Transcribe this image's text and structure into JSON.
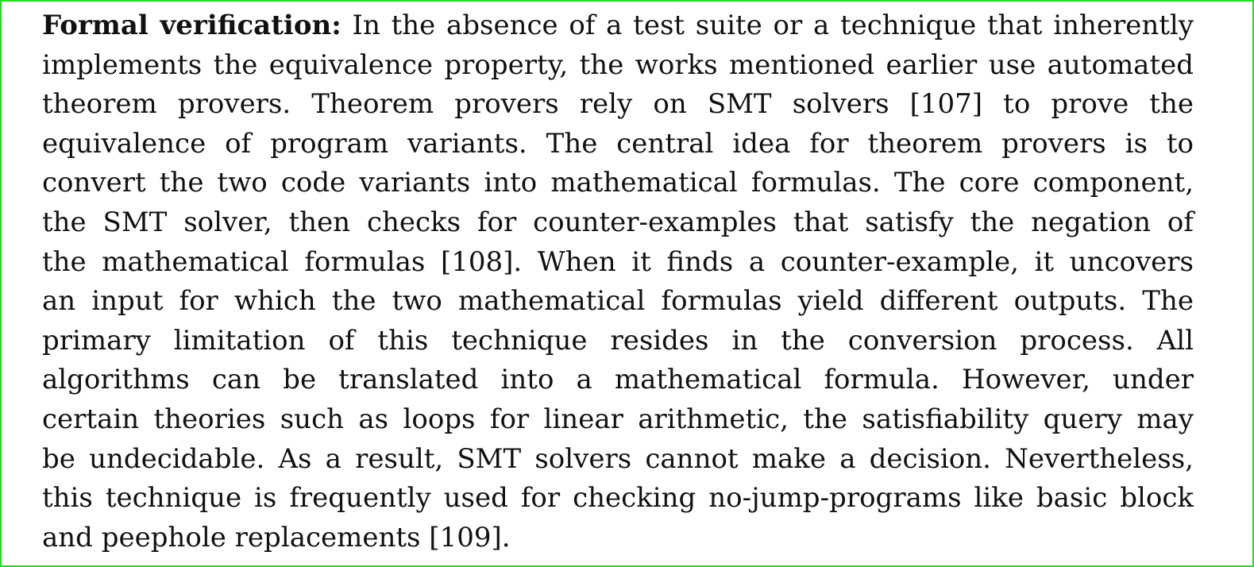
{
  "section": {
    "lead": "Formal verification:",
    "lines": [
      "In the absence of a test suite or a technique that inherently",
      "implements the equivalence property, the works mentioned earlier use automated",
      "theorem provers.  Theorem provers rely on SMT solvers [107] to prove the",
      "equivalence of program variants.  The central idea for theorem provers is to",
      "convert the two code variants into mathematical formulas. The core component,",
      "the SMT solver, then checks for counter-examples that satisfy the negation of",
      "the mathematical formulas [108]. When it finds a counter-example, it uncovers",
      "an input for which the two mathematical formulas yield different outputs. The",
      "primary limitation of this technique resides in the conversion process.  All",
      "algorithms can be translated into a mathematical formula.  However, under",
      "certain theories such as loops for linear arithmetic, the satisfiability query may",
      "be undecidable. As a result, SMT solvers cannot make a decision. Nevertheless,",
      "this technique is frequently used for checking no-jump-programs like basic block",
      "and peephole replacements [109]."
    ]
  }
}
